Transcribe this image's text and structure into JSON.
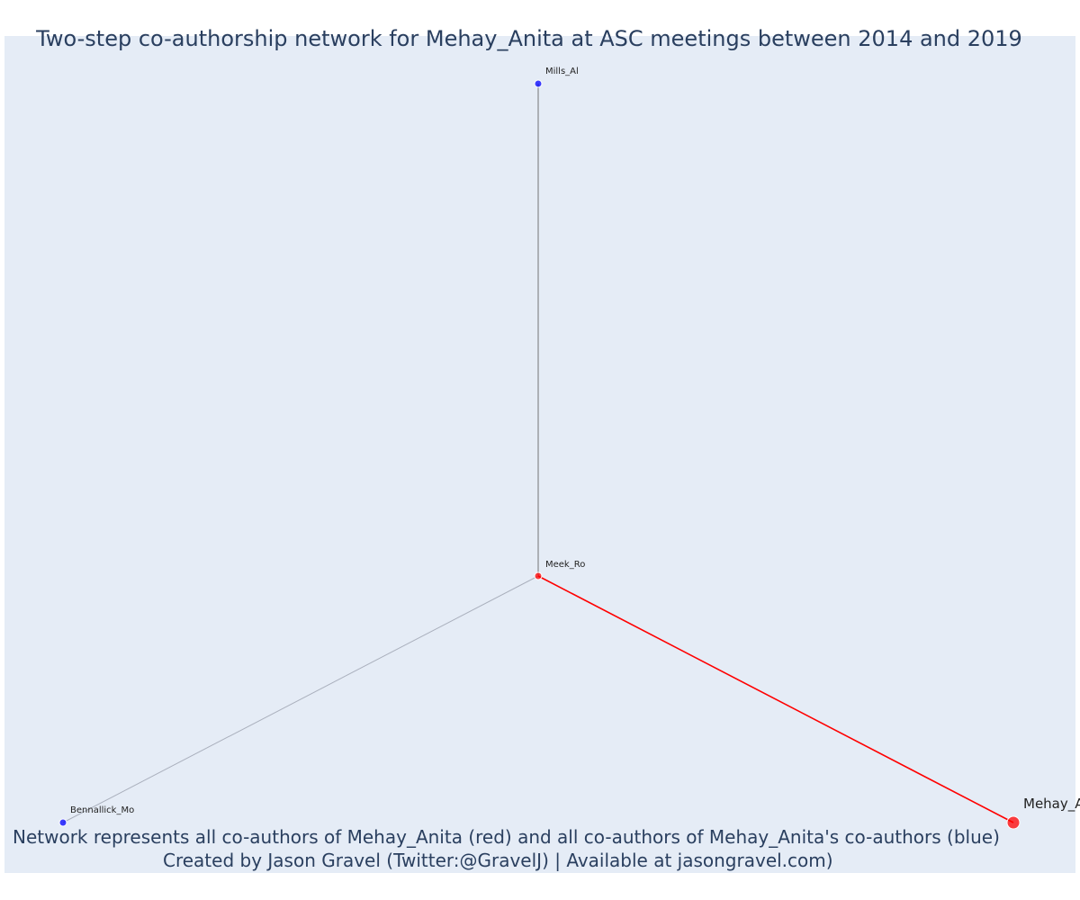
{
  "title": "Two-step co-authorship network for Mehay_Anita at ASC meetings between 2014 and 2019",
  "caption": {
    "line1": "Network represents all co-authors of Mehay_Anita (red) and all co-authors of Mehay_Anita's co-authors (blue)",
    "line2": "Created by Jason Gravel (Twitter:@GravelJ) | Available at jasongravel.com)"
  },
  "colors": {
    "plot_background": "#e5ecf6",
    "focal_node": "#ff0000",
    "coauthor_node": "#ff0000",
    "second_step_node": "#0000ff",
    "focal_edge": "#ff0000",
    "vertical_edge": "#555555",
    "other_edge": "#aab0bd"
  },
  "nodes": [
    {
      "id": "mills",
      "label": "Mills_Al",
      "group": "second_step"
    },
    {
      "id": "meek",
      "label": "Meek_Ro",
      "group": "coauthor"
    },
    {
      "id": "bennallick",
      "label": "Bennallick_Mo",
      "group": "second_step"
    },
    {
      "id": "mehay",
      "label": "Mehay_Anita",
      "group": "focal"
    }
  ],
  "edges": [
    {
      "source": "meek",
      "target": "mills",
      "style": "vertical"
    },
    {
      "source": "meek",
      "target": "bennallick",
      "style": "other"
    },
    {
      "source": "meek",
      "target": "mehay",
      "style": "focal"
    }
  ]
}
